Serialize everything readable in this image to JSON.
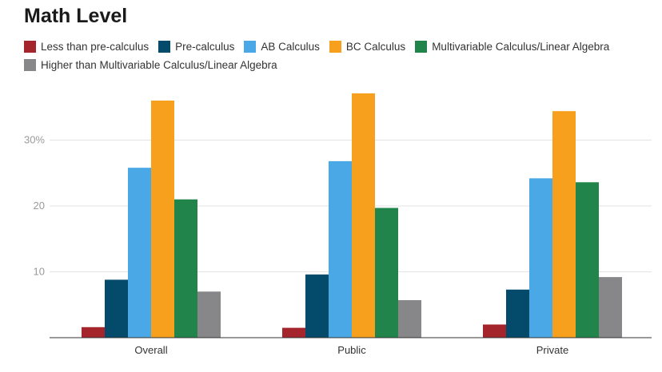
{
  "chart_data": {
    "type": "bar",
    "title": "Math Level",
    "xlabel": "",
    "ylabel": "",
    "categories": [
      "Overall",
      "Public",
      "Private"
    ],
    "series": [
      {
        "name": "Less than pre-calculus",
        "color": "#a4262c",
        "values": [
          1.6,
          1.5,
          2.0
        ]
      },
      {
        "name": "Pre-calculus",
        "color": "#034a6b",
        "values": [
          8.8,
          9.6,
          7.3
        ]
      },
      {
        "name": "AB Calculus",
        "color": "#4ba8e6",
        "values": [
          25.8,
          26.8,
          24.2
        ]
      },
      {
        "name": "BC Calculus",
        "color": "#f6a01e",
        "values": [
          36.0,
          37.1,
          34.4
        ]
      },
      {
        "name": "Multivariable Calculus/Linear Algebra",
        "color": "#21844a",
        "values": [
          21.0,
          19.7,
          23.6
        ]
      },
      {
        "name": "Higher than Multivariable Calculus/Linear Algebra",
        "color": "#87878a",
        "values": [
          7.0,
          5.7,
          9.2
        ]
      }
    ],
    "y_ticks": [
      {
        "value": 10,
        "label": "10"
      },
      {
        "value": 20,
        "label": "20"
      },
      {
        "value": 30,
        "label": "30%"
      }
    ],
    "ylim": [
      0,
      40
    ],
    "grid": true,
    "legend_position": "top"
  }
}
